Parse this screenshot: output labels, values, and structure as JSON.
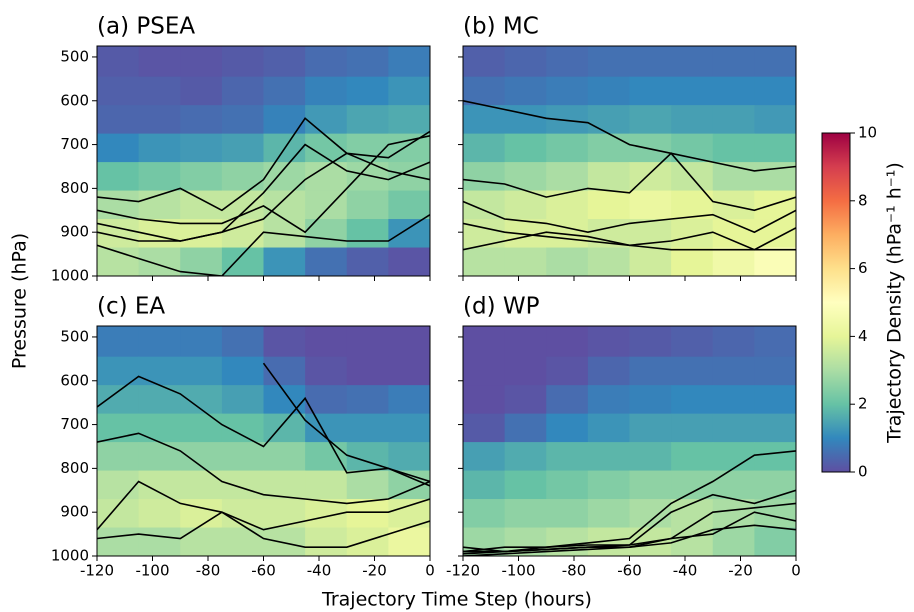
{
  "figure": {
    "xlabel": "Trajectory Time Step (hours)",
    "ylabel": "Pressure (hPa)",
    "colorbar": {
      "label": "Trajectory Density (hPa⁻¹ h⁻¹)",
      "lim": [
        0,
        10
      ],
      "ticks": [
        0,
        2,
        4,
        6,
        8,
        10
      ],
      "colors": [
        "#5e4fa2",
        "#3288bd",
        "#66c2a5",
        "#abdda4",
        "#e6f598",
        "#ffffbf",
        "#fee08b",
        "#fdae61",
        "#f46d43",
        "#d53e4f",
        "#9e0142"
      ]
    }
  },
  "chart_data": [
    {
      "type": "heatmap",
      "title": "(a) PSEA",
      "xlim": [
        -120,
        0
      ],
      "ylim": [
        1000,
        475
      ],
      "xticks": [
        -120,
        -100,
        -80,
        -60,
        -40,
        -20,
        0
      ],
      "yticks": [
        500,
        600,
        700,
        800,
        900,
        1000
      ],
      "show_xtick_labels": false,
      "show_ytick_labels": true,
      "x_edges": [
        -120,
        -105,
        -90,
        -75,
        -60,
        -45,
        -30,
        -15,
        0
      ],
      "y_edges": [
        475,
        545,
        610,
        675,
        740,
        805,
        870,
        935,
        1000
      ],
      "z": [
        [
          0.2,
          0.1,
          0.1,
          0.2,
          0.3,
          0.5,
          0.6,
          0.8
        ],
        [
          0.3,
          0.3,
          0.2,
          0.4,
          0.6,
          0.9,
          1,
          1.2
        ],
        [
          0.4,
          0.4,
          0.5,
          0.6,
          0.9,
          1.3,
          1.5,
          1.6
        ],
        [
          1,
          1.2,
          1.3,
          1.4,
          1.8,
          2.2,
          2.4,
          2.4
        ],
        [
          2,
          2.2,
          2.4,
          2.6,
          2.8,
          3,
          2.8,
          2.6
        ],
        [
          3,
          3.2,
          3.4,
          3.4,
          3.2,
          3,
          2.6,
          2.2
        ],
        [
          3.6,
          3.8,
          3.8,
          3.6,
          3.2,
          2.6,
          2,
          1.2
        ],
        [
          3.2,
          3,
          2.6,
          2,
          1.2,
          0.6,
          0.3,
          0.1
        ]
      ],
      "line_color": "#000000",
      "line_x": [
        -120,
        -105,
        -90,
        -75,
        -60,
        -45,
        -30,
        -15,
        0
      ],
      "lines": [
        [
          820,
          830,
          800,
          850,
          780,
          640,
          720,
          730,
          670
        ],
        [
          880,
          900,
          920,
          900,
          810,
          700,
          760,
          780,
          740
        ],
        [
          900,
          920,
          920,
          900,
          870,
          780,
          720,
          760,
          780
        ],
        [
          930,
          960,
          990,
          1000,
          900,
          910,
          920,
          920,
          860
        ],
        [
          850,
          870,
          880,
          880,
          840,
          900,
          800,
          700,
          680
        ]
      ]
    },
    {
      "type": "heatmap",
      "title": "(b) MC",
      "xlim": [
        -120,
        0
      ],
      "ylim": [
        1000,
        475
      ],
      "xticks": [
        -120,
        -100,
        -80,
        -60,
        -40,
        -20,
        0
      ],
      "yticks": [
        500,
        600,
        700,
        800,
        900,
        1000
      ],
      "show_xtick_labels": false,
      "show_ytick_labels": false,
      "x_edges": [
        -120,
        -105,
        -90,
        -75,
        -60,
        -45,
        -30,
        -15,
        0
      ],
      "y_edges": [
        475,
        545,
        610,
        675,
        740,
        805,
        870,
        935,
        1000
      ],
      "z": [
        [
          0.3,
          0.4,
          0.5,
          0.6,
          0.6,
          0.6,
          0.6,
          0.6
        ],
        [
          0.6,
          0.7,
          0.8,
          0.9,
          1,
          1,
          1,
          1
        ],
        [
          1.2,
          1.2,
          1.3,
          1.4,
          1.5,
          1.4,
          1.4,
          1.3
        ],
        [
          1.8,
          2,
          2.2,
          2.4,
          2.4,
          2.2,
          2,
          2
        ],
        [
          2.6,
          2.8,
          3,
          3.4,
          3.6,
          3.4,
          3,
          3
        ],
        [
          3.4,
          3.6,
          3.8,
          4,
          4.2,
          4,
          3.8,
          4
        ],
        [
          3.6,
          3.8,
          3.8,
          3.6,
          3.6,
          3.8,
          4,
          4
        ],
        [
          3.2,
          3.2,
          3,
          3.2,
          3.6,
          4,
          4.4,
          4.8
        ]
      ],
      "line_color": "#000000",
      "line_x": [
        -120,
        -105,
        -90,
        -75,
        -60,
        -45,
        -30,
        -15,
        0
      ],
      "lines": [
        [
          600,
          620,
          640,
          650,
          700,
          720,
          740,
          760,
          750
        ],
        [
          780,
          790,
          820,
          800,
          810,
          720,
          830,
          850,
          820
        ],
        [
          830,
          870,
          880,
          900,
          880,
          870,
          860,
          900,
          850
        ],
        [
          940,
          920,
          900,
          910,
          930,
          920,
          900,
          940,
          890
        ],
        [
          880,
          900,
          910,
          920,
          930,
          940,
          940,
          940,
          940
        ]
      ]
    },
    {
      "type": "heatmap",
      "title": "(c) EA",
      "xlim": [
        -120,
        0
      ],
      "ylim": [
        1000,
        475
      ],
      "xticks": [
        -120,
        -100,
        -80,
        -60,
        -40,
        -20,
        0
      ],
      "yticks": [
        500,
        600,
        700,
        800,
        900,
        1000
      ],
      "show_xtick_labels": true,
      "show_ytick_labels": true,
      "x_edges": [
        -120,
        -105,
        -90,
        -75,
        -60,
        -45,
        -30,
        -15,
        0
      ],
      "y_edges": [
        475,
        545,
        610,
        675,
        740,
        805,
        870,
        935,
        1000
      ],
      "z": [
        [
          0.8,
          0.8,
          0.8,
          0.6,
          0.1,
          0,
          0,
          0
        ],
        [
          1.2,
          1.2,
          1.2,
          1,
          0.5,
          0.1,
          0,
          0
        ],
        [
          1.6,
          1.6,
          1.6,
          1.4,
          1,
          0.5,
          0.6,
          0.8
        ],
        [
          2,
          2,
          2,
          2,
          1.8,
          1.2,
          1.2,
          1.2
        ],
        [
          2.6,
          2.6,
          2.6,
          2.6,
          2.6,
          2.2,
          1.8,
          1.6
        ],
        [
          3.2,
          3.4,
          3.4,
          3.4,
          3.4,
          3.4,
          3,
          2.6
        ],
        [
          3.4,
          3.6,
          3.8,
          3.6,
          3.6,
          3.8,
          4,
          3.8
        ],
        [
          3,
          3,
          3.2,
          3.2,
          3.2,
          3.6,
          3.8,
          4.2
        ]
      ],
      "line_color": "#000000",
      "line_x": [
        -120,
        -105,
        -90,
        -75,
        -60,
        -45,
        -30,
        -15,
        0
      ],
      "lines": [
        [
          660,
          590,
          630,
          700,
          750,
          640,
          810,
          800,
          830
        ],
        [
          740,
          720,
          760,
          830,
          860,
          870,
          880,
          870,
          830
        ],
        [
          940,
          830,
          880,
          900,
          940,
          920,
          900,
          900,
          870
        ],
        [
          960,
          950,
          960,
          900,
          960,
          980,
          980,
          950,
          920
        ],
        [
          null,
          null,
          null,
          null,
          560,
          690,
          770,
          800,
          840
        ]
      ]
    },
    {
      "type": "heatmap",
      "title": "(d) WP",
      "xlim": [
        -120,
        0
      ],
      "ylim": [
        1000,
        475
      ],
      "xticks": [
        -120,
        -100,
        -80,
        -60,
        -40,
        -20,
        0
      ],
      "yticks": [
        500,
        600,
        700,
        800,
        900,
        1000
      ],
      "show_xtick_labels": true,
      "show_ytick_labels": false,
      "x_edges": [
        -120,
        -105,
        -90,
        -75,
        -60,
        -45,
        -30,
        -15,
        0
      ],
      "y_edges": [
        475,
        545,
        610,
        675,
        740,
        805,
        870,
        935,
        1000
      ],
      "z": [
        [
          0,
          0,
          0,
          0.1,
          0.2,
          0.3,
          0.4,
          0.5
        ],
        [
          0,
          0,
          0.1,
          0.4,
          0.6,
          0.6,
          0.6,
          0.6
        ],
        [
          0,
          0.1,
          0.5,
          0.8,
          0.9,
          1,
          1,
          1
        ],
        [
          0.2,
          0.6,
          1,
          1.2,
          1.4,
          1.4,
          1.4,
          1.4
        ],
        [
          1.4,
          1.6,
          1.8,
          1.8,
          1.8,
          2,
          2,
          2
        ],
        [
          1.8,
          2,
          2.2,
          2.4,
          2.6,
          2.6,
          2.6,
          2.6
        ],
        [
          2.4,
          2.6,
          2.6,
          2.8,
          3,
          3.2,
          3,
          2.8
        ],
        [
          2.8,
          3,
          3.2,
          3.4,
          3.4,
          3.2,
          2.8,
          2.4
        ]
      ],
      "line_color": "#000000",
      "line_x": [
        -120,
        -105,
        -90,
        -75,
        -60,
        -45,
        -30,
        -15,
        0
      ],
      "lines": [
        [
          980,
          990,
          980,
          970,
          960,
          880,
          830,
          770,
          760
        ],
        [
          990,
          980,
          980,
          975,
          975,
          900,
          860,
          880,
          850
        ],
        [
          990,
          990,
          985,
          980,
          975,
          960,
          900,
          890,
          880
        ],
        [
          995,
          990,
          985,
          980,
          980,
          960,
          950,
          900,
          920
        ],
        [
          1000,
          995,
          990,
          985,
          980,
          970,
          940,
          930,
          940
        ]
      ]
    }
  ]
}
